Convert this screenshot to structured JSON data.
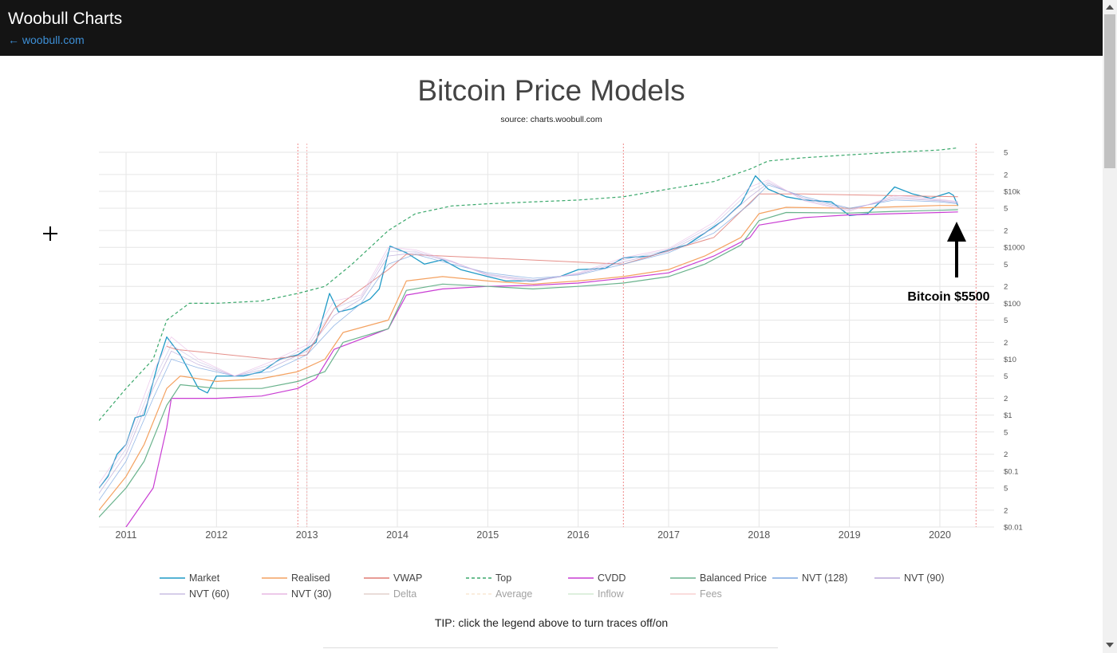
{
  "header": {
    "site_title": "Woobull Charts",
    "back_link": "← woobull.com"
  },
  "tip": "TIP: click the legend above to turn traces off/on",
  "annotation": {
    "text": "Bitcoin $5500",
    "arrow_color": "#000000"
  },
  "colors": {
    "market": "#1f9ac6",
    "realised": "#f4a261",
    "vwap": "#e07b74",
    "top": "#3aa86b",
    "cvdd": "#c93dd3",
    "balanced": "#6ab38d",
    "nvt128": "#7aa6e0",
    "nvt90": "#b9a6d8",
    "nvt60": "#c9bde4",
    "nvt30": "#e7b7e4",
    "delta": "#c8a59a",
    "average": "#f2d0a9",
    "inflow": "#a7d7a7",
    "fees": "#f2a3a3",
    "halving": "#f08a8a",
    "grid": "#e6e6e6"
  },
  "chart_data": {
    "type": "line",
    "title": "Bitcoin Price Models",
    "subtitle": "source: charts.woobull.com",
    "xlabel": "",
    "ylabel": "",
    "y_scale": "log",
    "ylim": [
      0.01,
      50000
    ],
    "xlim": [
      2010.7,
      2020.6
    ],
    "x_ticks": [
      "2011",
      "2012",
      "2013",
      "2014",
      "2015",
      "2016",
      "2017",
      "2018",
      "2019",
      "2020"
    ],
    "y_tick_labels": [
      "$0.01",
      "2",
      "5",
      "$0.1",
      "2",
      "5",
      "$1",
      "2",
      "5",
      "$10",
      "2",
      "5",
      "$100",
      "2",
      "5",
      "$1000",
      "2",
      "5",
      "$10k",
      "2",
      "5"
    ],
    "grid": true,
    "legend_position": "bottom",
    "halvings": [
      2012.9,
      2016.5,
      2020.4
    ],
    "series": [
      {
        "name": "Market",
        "key": "market",
        "dash": "solid",
        "width": 1.3,
        "opacity": 1,
        "x": [
          2010.7,
          2010.8,
          2010.9,
          2011.0,
          2011.1,
          2011.2,
          2011.35,
          2011.45,
          2011.6,
          2011.8,
          2011.9,
          2012.0,
          2012.3,
          2012.5,
          2012.7,
          2012.9,
          2013.1,
          2013.25,
          2013.35,
          2013.5,
          2013.7,
          2013.8,
          2013.92,
          2014.1,
          2014.3,
          2014.5,
          2014.7,
          2015.0,
          2015.2,
          2015.5,
          2015.8,
          2016.0,
          2016.3,
          2016.5,
          2016.8,
          2017.0,
          2017.2,
          2017.4,
          2017.6,
          2017.8,
          2017.96,
          2018.1,
          2018.3,
          2018.5,
          2018.8,
          2019.0,
          2019.2,
          2019.4,
          2019.5,
          2019.7,
          2019.9,
          2020.1,
          2020.15,
          2020.2
        ],
        "y": [
          0.05,
          0.08,
          0.2,
          0.3,
          0.9,
          1,
          8,
          25,
          12,
          3,
          2.5,
          5,
          5,
          6,
          10,
          12,
          20,
          150,
          70,
          80,
          120,
          180,
          1050,
          800,
          500,
          600,
          400,
          300,
          250,
          250,
          300,
          400,
          420,
          650,
          700,
          900,
          1100,
          1800,
          3000,
          6000,
          19000,
          11000,
          8000,
          7000,
          6500,
          3700,
          4000,
          8000,
          12000,
          9000,
          7500,
          9500,
          8500,
          5500
        ]
      },
      {
        "name": "Realised",
        "key": "realised",
        "dash": "solid",
        "width": 1.2,
        "opacity": 1,
        "x": [
          2010.7,
          2011.0,
          2011.2,
          2011.45,
          2011.6,
          2012.0,
          2012.5,
          2012.9,
          2013.2,
          2013.4,
          2013.9,
          2014.1,
          2014.5,
          2015.0,
          2015.5,
          2016.0,
          2016.5,
          2017.0,
          2017.4,
          2017.8,
          2018.0,
          2018.3,
          2019.0,
          2019.5,
          2020.0,
          2020.2
        ],
        "y": [
          0.02,
          0.08,
          0.3,
          3,
          5,
          4,
          4.5,
          6,
          10,
          30,
          50,
          250,
          300,
          250,
          220,
          250,
          300,
          400,
          700,
          1500,
          4000,
          5200,
          5000,
          5300,
          5600,
          5600
        ]
      },
      {
        "name": "VWAP",
        "key": "vwap",
        "dash": "solid",
        "width": 1,
        "opacity": 0.85,
        "x": [
          2011.45,
          2011.55,
          2012.6,
          2013.0,
          2013.3,
          2013.9,
          2014.1,
          2016.5,
          2017.5,
          2018.0,
          2018.5,
          2020.2
        ],
        "y": [
          17,
          15,
          10,
          12,
          80,
          400,
          750,
          500,
          1500,
          9000,
          9000,
          8000
        ]
      },
      {
        "name": "Top",
        "key": "top",
        "dash": "dash",
        "width": 1.2,
        "opacity": 1,
        "x": [
          2010.7,
          2011.0,
          2011.3,
          2011.45,
          2011.7,
          2012.0,
          2012.5,
          2012.9,
          2013.2,
          2013.5,
          2013.9,
          2014.2,
          2014.6,
          2015.0,
          2015.5,
          2016.0,
          2016.5,
          2017.0,
          2017.5,
          2017.9,
          2018.1,
          2018.5,
          2019.0,
          2019.5,
          2020.0,
          2020.2
        ],
        "y": [
          0.8,
          3,
          10,
          50,
          100,
          100,
          110,
          150,
          200,
          500,
          2000,
          4000,
          5500,
          6000,
          6500,
          7000,
          8000,
          11000,
          15000,
          25000,
          35000,
          40000,
          45000,
          50000,
          55000,
          60000
        ]
      },
      {
        "name": "CVDD",
        "key": "cvdd",
        "dash": "solid",
        "width": 1.2,
        "opacity": 1,
        "x": [
          2010.8,
          2011.0,
          2011.3,
          2011.45,
          2011.5,
          2012.0,
          2012.5,
          2012.9,
          2013.1,
          2013.3,
          2013.9,
          2014.1,
          2014.5,
          2015.0,
          2015.5,
          2016.0,
          2016.5,
          2017.0,
          2017.5,
          2017.9,
          2018.0,
          2018.5,
          2019.0,
          2019.5,
          2020.0,
          2020.2
        ],
        "y": [
          0.004,
          0.01,
          0.05,
          0.6,
          2,
          2,
          2.2,
          3,
          4.5,
          15,
          35,
          140,
          180,
          200,
          210,
          230,
          280,
          350,
          700,
          1500,
          2500,
          3400,
          3800,
          4000,
          4200,
          4300
        ]
      },
      {
        "name": "Balanced Price",
        "key": "balanced",
        "dash": "solid",
        "width": 1.2,
        "opacity": 1,
        "x": [
          2010.7,
          2011.0,
          2011.2,
          2011.45,
          2011.6,
          2012.0,
          2012.5,
          2012.9,
          2013.2,
          2013.4,
          2013.9,
          2014.1,
          2014.5,
          2015.0,
          2015.5,
          2016.0,
          2016.5,
          2017.0,
          2017.4,
          2017.8,
          2018.0,
          2018.3,
          2019.0,
          2019.5,
          2020.0,
          2020.2
        ],
        "y": [
          0.015,
          0.05,
          0.15,
          1.5,
          3.5,
          3,
          3,
          4,
          6,
          20,
          35,
          170,
          220,
          200,
          180,
          200,
          230,
          300,
          500,
          1100,
          3000,
          4200,
          4100,
          4400,
          4600,
          4700
        ]
      },
      {
        "name": "NVT (128)",
        "key": "nvt128",
        "dash": "solid",
        "width": 0.8,
        "opacity": 0.8,
        "x": [
          2010.7,
          2011.0,
          2011.3,
          2011.5,
          2011.8,
          2012.2,
          2012.6,
          2013.0,
          2013.3,
          2013.6,
          2013.9,
          2014.2,
          2014.6,
          2015.0,
          2015.5,
          2016.0,
          2016.5,
          2017.0,
          2017.5,
          2017.9,
          2018.1,
          2018.5,
          2019.0,
          2019.5,
          2020.0,
          2020.2
        ],
        "y": [
          0.03,
          0.15,
          2,
          10,
          7,
          5,
          6,
          12,
          40,
          100,
          500,
          750,
          500,
          350,
          280,
          320,
          500,
          800,
          1800,
          6000,
          13000,
          8000,
          5000,
          7000,
          6500,
          6000
        ]
      },
      {
        "name": "NVT (90)",
        "key": "nvt90",
        "dash": "solid",
        "width": 0.8,
        "opacity": 0.8,
        "x": [
          2010.7,
          2011.0,
          2011.3,
          2011.5,
          2011.8,
          2012.2,
          2012.6,
          2013.0,
          2013.3,
          2013.6,
          2013.9,
          2014.2,
          2014.6,
          2015.0,
          2015.5,
          2016.0,
          2016.5,
          2017.0,
          2017.5,
          2017.9,
          2018.1,
          2018.5,
          2019.0,
          2019.5,
          2020.0,
          2020.2
        ],
        "y": [
          0.04,
          0.2,
          3,
          14,
          8,
          5,
          7,
          14,
          60,
          120,
          700,
          800,
          550,
          330,
          260,
          330,
          550,
          850,
          2200,
          8000,
          14000,
          7500,
          4800,
          7500,
          6800,
          6200
        ]
      },
      {
        "name": "NVT (60)",
        "key": "nvt60",
        "dash": "solid",
        "width": 0.8,
        "opacity": 0.7,
        "x": [
          2010.7,
          2011.0,
          2011.3,
          2011.5,
          2011.8,
          2012.2,
          2012.6,
          2013.0,
          2013.3,
          2013.6,
          2013.9,
          2014.2,
          2014.6,
          2015.0,
          2015.5,
          2016.0,
          2016.5,
          2017.0,
          2017.5,
          2017.9,
          2018.1,
          2018.5,
          2019.0,
          2019.5,
          2020.0,
          2020.2
        ],
        "y": [
          0.05,
          0.25,
          4,
          18,
          9,
          5,
          8,
          16,
          80,
          130,
          850,
          850,
          560,
          320,
          250,
          340,
          600,
          900,
          2500,
          10000,
          15000,
          7000,
          4600,
          8000,
          7000,
          6400
        ]
      },
      {
        "name": "NVT (30)",
        "key": "nvt30",
        "dash": "solid",
        "width": 0.8,
        "opacity": 0.7,
        "x": [
          2010.7,
          2011.0,
          2011.3,
          2011.5,
          2011.8,
          2012.2,
          2012.6,
          2013.0,
          2013.3,
          2013.6,
          2013.9,
          2014.2,
          2014.6,
          2015.0,
          2015.5,
          2016.0,
          2016.5,
          2017.0,
          2017.5,
          2017.9,
          2018.1,
          2018.5,
          2019.0,
          2019.5,
          2020.0,
          2020.2
        ],
        "y": [
          0.06,
          0.3,
          6,
          25,
          10,
          5,
          9,
          18,
          110,
          140,
          1000,
          900,
          570,
          310,
          240,
          350,
          650,
          950,
          2800,
          12000,
          16000,
          6800,
          4400,
          8500,
          7200,
          6600
        ]
      }
    ],
    "legend": [
      {
        "name": "Market",
        "key": "market",
        "dash": "solid",
        "active": true
      },
      {
        "name": "Realised",
        "key": "realised",
        "dash": "solid",
        "active": true
      },
      {
        "name": "VWAP",
        "key": "vwap",
        "dash": "solid",
        "active": true
      },
      {
        "name": "Top",
        "key": "top",
        "dash": "dash",
        "active": true
      },
      {
        "name": "CVDD",
        "key": "cvdd",
        "dash": "solid",
        "active": true
      },
      {
        "name": "Balanced Price",
        "key": "balanced",
        "dash": "solid",
        "active": true
      },
      {
        "name": "NVT (128)",
        "key": "nvt128",
        "dash": "solid",
        "active": true
      },
      {
        "name": "NVT (90)",
        "key": "nvt90",
        "dash": "solid",
        "active": true
      },
      {
        "name": "NVT (60)",
        "key": "nvt60",
        "dash": "solid",
        "active": true
      },
      {
        "name": "NVT (30)",
        "key": "nvt30",
        "dash": "solid",
        "active": true
      },
      {
        "name": "Delta",
        "key": "delta",
        "dash": "solid",
        "active": false
      },
      {
        "name": "Average",
        "key": "average",
        "dash": "dash",
        "active": false
      },
      {
        "name": "Inflow",
        "key": "inflow",
        "dash": "solid",
        "active": false
      },
      {
        "name": "Fees",
        "key": "fees",
        "dash": "solid",
        "active": false
      }
    ]
  }
}
